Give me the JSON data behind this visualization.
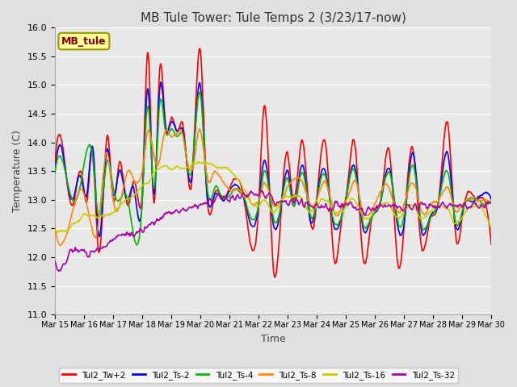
{
  "title": "MB Tule Tower: Tule Temps 2 (3/23/17-now)",
  "xlabel": "Time",
  "ylabel": "Temperature (C)",
  "ylim": [
    11.0,
    16.0
  ],
  "yticks": [
    11.0,
    11.5,
    12.0,
    12.5,
    13.0,
    13.5,
    14.0,
    14.5,
    15.0,
    15.5,
    16.0
  ],
  "xtick_labels": [
    "Mar 15",
    "Mar 16",
    "Mar 17",
    "Mar 18",
    "Mar 19",
    "Mar 20",
    "Mar 21",
    "Mar 22",
    "Mar 23",
    "Mar 24",
    "Mar 25",
    "Mar 26",
    "Mar 27",
    "Mar 28",
    "Mar 29",
    "Mar 30"
  ],
  "background_color": "#e0e0e0",
  "plot_bg_color": "#e8e8e8",
  "grid_color": "#ffffff",
  "legend_box_label": "MB_tule",
  "legend_box_color": "#ffff99",
  "legend_box_border": "#999900",
  "series": [
    {
      "label": "Tul2_Tw+2",
      "color": "#ff0000",
      "lw": 1.2
    },
    {
      "label": "Tul2_Ts-2",
      "color": "#0000ff",
      "lw": 1.2
    },
    {
      "label": "Tul2_Ts-4",
      "color": "#00bb00",
      "lw": 1.2
    },
    {
      "label": "Tul2_Ts-8",
      "color": "#ff8800",
      "lw": 1.2
    },
    {
      "label": "Tul2_Ts-16",
      "color": "#cccc00",
      "lw": 1.2
    },
    {
      "label": "Tul2_Ts-32",
      "color": "#aa00aa",
      "lw": 1.2
    }
  ]
}
